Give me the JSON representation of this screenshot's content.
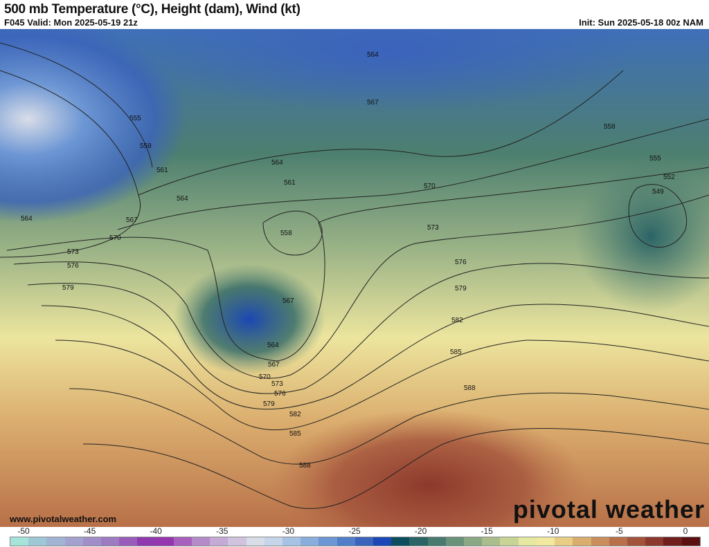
{
  "header": {
    "title": "500 mb Temperature (°C), Height (dam), Wind (kt)",
    "valid": "F045 Valid: Mon 2025-05-19 21z",
    "init": "Init: Sun 2025-05-18 00z NAM"
  },
  "footer": {
    "website": "www.pivotalweather.com",
    "brand": "pivotal weather"
  },
  "colorbar": {
    "unit": "°C",
    "ticks": [
      "-50",
      "-45",
      "-40",
      "-35",
      "-30",
      "-25",
      "-20",
      "-15",
      "-10",
      "-5",
      "0"
    ],
    "colors": [
      "#a6e3d9",
      "#9fc8d6",
      "#a2b4d4",
      "#a3a2cf",
      "#a08ec9",
      "#9e7ac2",
      "#9a5cbb",
      "#8e3aae",
      "#9536b0",
      "#a760bd",
      "#b58ac9",
      "#c4aad5",
      "#cfc3de",
      "#d9dde8",
      "#c6d5ea",
      "#a7c2e5",
      "#8aaedc",
      "#6d97d4",
      "#517ec8",
      "#3b63bc",
      "#1c47b4",
      "#0c4d5e",
      "#2b6466",
      "#487a70",
      "#6a917a",
      "#8aa883",
      "#aabd8d",
      "#c8d396",
      "#e6e7a0",
      "#f3e8a0",
      "#e8cd85",
      "#d9ad6d",
      "#c98e5b",
      "#b8704a",
      "#a3533b",
      "#8c382c",
      "#701e1e",
      "#5a1010"
    ]
  },
  "contours": {
    "labels": [
      "555",
      "558",
      "561",
      "564",
      "564",
      "567",
      "570",
      "573",
      "576",
      "579",
      "564",
      "567",
      "564",
      "561",
      "558",
      "567",
      "564",
      "567",
      "570",
      "573",
      "576",
      "579",
      "582",
      "585",
      "588",
      "570",
      "573",
      "576",
      "579",
      "582",
      "585",
      "588",
      "558",
      "555",
      "552",
      "549"
    ]
  },
  "map": {
    "field": "500mb temperature, height contours, wind barbs",
    "region": "North America"
  }
}
